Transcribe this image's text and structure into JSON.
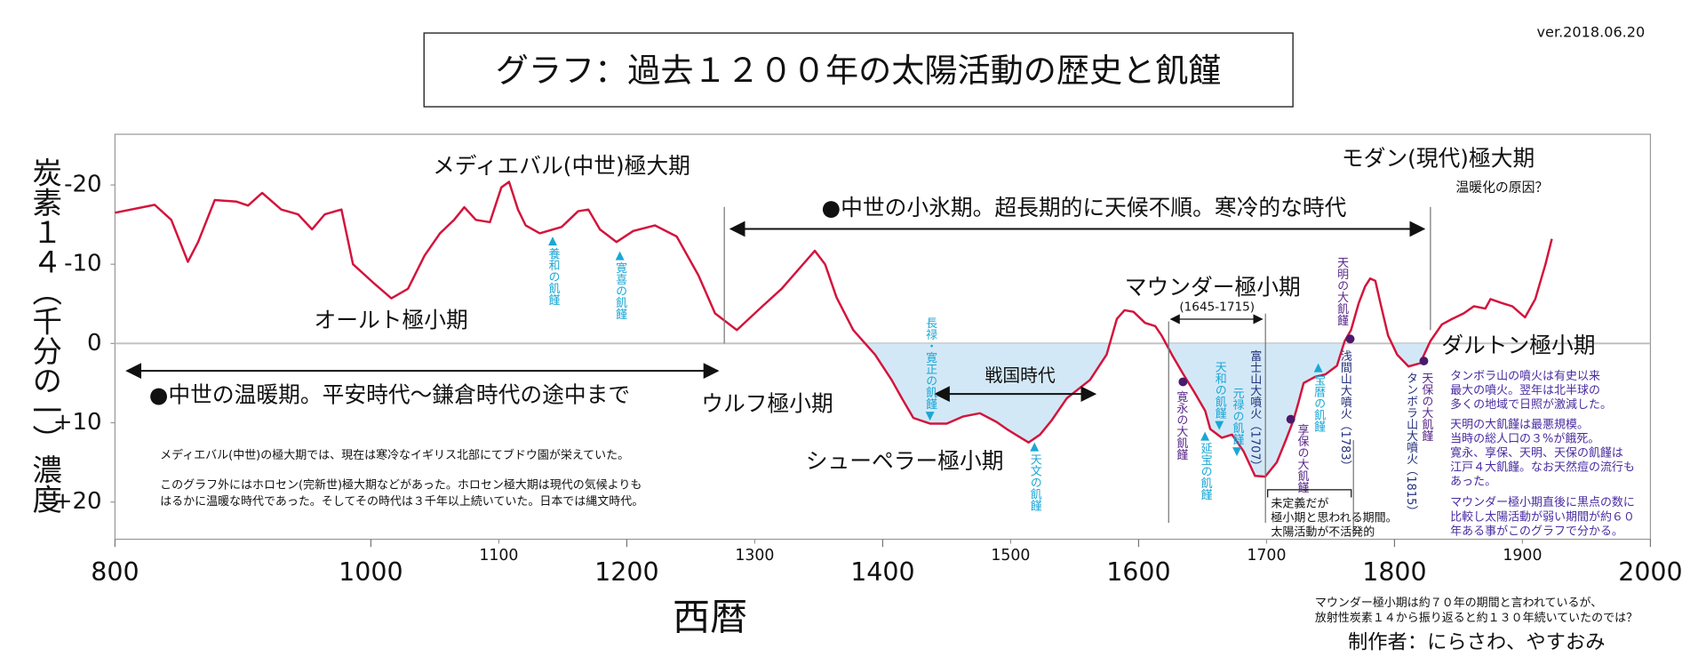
{
  "chart_data": {
    "type": "line",
    "title": "グラフ：過去１２００年の太陽活動の歴史と飢饉",
    "version": "ver.2018.06.20",
    "y_label": "炭素１４（千分の一）濃度",
    "x_label": "西暦",
    "xlim": [
      800,
      2000
    ],
    "xticks": [
      800,
      1000,
      1200,
      1400,
      1600,
      1800,
      2000
    ],
    "xticks_minor": [
      1100,
      1300,
      1500,
      1700,
      1900
    ],
    "ylim": [
      24.7,
      -26.4
    ],
    "yticks": [
      -20,
      -10,
      0,
      {
        "value": 10,
        "label": "+10"
      },
      {
        "value": 20,
        "label": "+20"
      }
    ],
    "area_color": "#d3e8f6",
    "x": [
      800,
      831,
      844,
      857,
      865,
      878,
      895,
      904,
      915,
      930,
      943,
      954,
      964,
      977,
      986,
      1003,
      1016,
      1029,
      1042,
      1054,
      1065,
      1073,
      1082,
      1093,
      1102,
      1108,
      1115,
      1121,
      1132,
      1149,
      1162,
      1170,
      1179,
      1192,
      1205,
      1222,
      1239,
      1256,
      1269,
      1286,
      1304,
      1321,
      1334,
      1347,
      1355,
      1364,
      1377,
      1394,
      1407,
      1415,
      1424,
      1437,
      1450,
      1463,
      1476,
      1489,
      1497,
      1506,
      1514,
      1523,
      1532,
      1544,
      1562,
      1575,
      1583,
      1589,
      1596,
      1605,
      1613,
      1618,
      1626,
      1635,
      1643,
      1652,
      1656,
      1665,
      1673,
      1682,
      1691,
      1699,
      1708,
      1715,
      1721,
      1725,
      1729,
      1738,
      1746,
      1755,
      1761,
      1766,
      1772,
      1777,
      1781,
      1785,
      1789,
      1795,
      1802,
      1811,
      1820,
      1828,
      1837,
      1845,
      1854,
      1862,
      1871,
      1875,
      1884,
      1892,
      1902,
      1910,
      1918,
      1923
    ],
    "series": [
      {
        "color": "#d3143c",
        "values": [
          -16.5,
          -17.5,
          -15.6,
          -10.3,
          -12.8,
          -18.1,
          -17.9,
          -17.4,
          -19.0,
          -16.9,
          -16.3,
          -14.4,
          -16.3,
          -16.9,
          -10.0,
          -7.5,
          -5.7,
          -6.9,
          -11.1,
          -13.9,
          -15.6,
          -17.2,
          -15.6,
          -15.3,
          -19.7,
          -20.4,
          -16.9,
          -14.9,
          -13.9,
          -14.7,
          -16.7,
          -16.9,
          -14.4,
          -12.8,
          -14.2,
          -14.9,
          -13.5,
          -8.6,
          -3.8,
          -1.7,
          -4.4,
          -6.9,
          -9.3,
          -11.7,
          -10.0,
          -5.8,
          -1.7,
          1.4,
          4.6,
          6.9,
          9.4,
          10.1,
          10.1,
          9.2,
          8.8,
          9.9,
          10.8,
          11.7,
          12.5,
          11.5,
          9.7,
          6.9,
          4.6,
          1.4,
          -3.1,
          -4.2,
          -4.0,
          -2.6,
          -2.2,
          -1.0,
          1.4,
          3.9,
          6.0,
          8.5,
          10.8,
          11.9,
          11.5,
          13.6,
          16.7,
          16.8,
          15.0,
          12.2,
          9.7,
          7.4,
          5.0,
          4.2,
          3.9,
          2.8,
          -0.3,
          -1.7,
          -5.1,
          -7.2,
          -8.2,
          -7.9,
          -5.1,
          -1.0,
          1.4,
          2.9,
          2.5,
          -0.3,
          -2.4,
          -3.1,
          -3.8,
          -4.7,
          -4.4,
          -5.6,
          -5.1,
          -4.7,
          -3.3,
          -5.6,
          -10.0,
          -13.2
        ]
      }
    ],
    "annotations": [
      "メディエバル(中世)極大期",
      "オールト極小期",
      "●中世の温暖期。平安時代〜鎌倉時代の途中まで",
      "ウルフ極小期",
      "●中世の小氷期。超長期的に天候不順。寒冷的な時代",
      "戦国時代",
      "シューペラー極小期",
      "マウンダー極小期",
      "(1645-1715)",
      "モダン(現代)極大期",
      "温暖化の原因？",
      "ダルトン極小期"
    ],
    "events": [
      "▲養和の飢饉",
      "▲寛喜の飢饉",
      "長禄・寛正の飢饉▼",
      "▲天文の飢饉",
      "寛永の大飢饉",
      "天和の飢饉▼",
      "▲延宝の飢饉",
      "元禄の飢饉▼",
      "富士山大噴火（1707）",
      "享保の大飢饉",
      "▲宝暦の飢饉",
      "天明の大飢饉",
      "浅間山大噴火（1783）",
      "タンボラ山大噴火（1815）",
      "天保の大飢饉"
    ],
    "notes_left": [
      "メディエバル(中世)の極大期では、現在は寒冷なイギリス北部にてブドウ園が栄えていた。",
      "このグラフ外にはホロセン(完新世)極大期などがあった。ホロセン極大期は現代の気候よりも",
      "はるかに温暖な時代であった。そしてその時代は３千年以上続いていた。日本では縄文時代。"
    ],
    "notes_box": [
      "未定義だが",
      "極小期と思われる期間。",
      "太陽活動が不活発的"
    ],
    "notes_right": [
      "タンボラ山の噴火は有史以来",
      "最大の噴火。翌年は北半球の",
      "多くの地域で日照が激減した。",
      "天明の大飢饉は最悪規模。",
      "当時の総人口の３%が餓死。",
      "寛永、享保、天明、天保の飢饉は",
      "江戸４大飢饉。なお天然痘の流行も",
      "あった。",
      "マウンダー極小期直後に黒点の数に",
      "比較し太陽活動が弱い期間が約６０",
      "年ある事がこのグラフで分かる。"
    ],
    "footer": [
      "マウンダー極小期は約７０年の期間と言われているが、",
      "放射性炭素１４から振り返ると約１３０年続いていたのでは？"
    ],
    "author": "制作者：にらさわ、やすおみ"
  }
}
